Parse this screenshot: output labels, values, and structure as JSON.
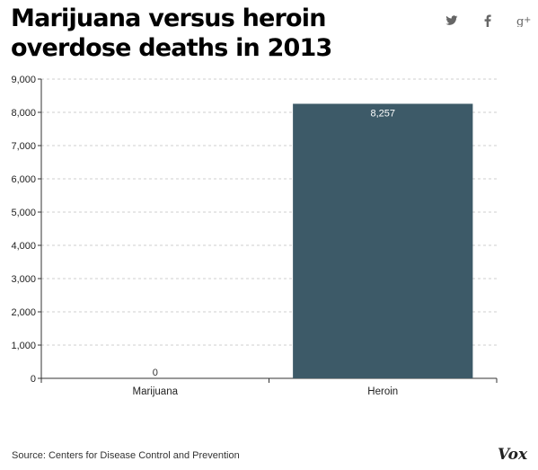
{
  "header": {
    "title": "Marijuana versus heroin overdose deaths in 2013",
    "share_icons": [
      "twitter-icon",
      "facebook-icon",
      "google-plus-icon"
    ]
  },
  "chart_data": {
    "type": "bar",
    "title": "Marijuana versus heroin overdose deaths in 2013",
    "categories": [
      "Marijuana",
      "Heroin"
    ],
    "values": [
      0,
      8257
    ],
    "data_labels": [
      "0",
      "8,257"
    ],
    "ylim": [
      0,
      9000
    ],
    "yticks": [
      0,
      1000,
      2000,
      3000,
      4000,
      5000,
      6000,
      7000,
      8000,
      9000
    ],
    "ytick_labels": [
      "0",
      "1,000",
      "2,000",
      "3,000",
      "4,000",
      "5,000",
      "6,000",
      "7,000",
      "8,000",
      "9,000"
    ],
    "xlabel": "",
    "ylabel": "",
    "grid": true,
    "bar_color": "#3d5a68"
  },
  "footer": {
    "source": "Source: Centers for Disease Control and Prevention",
    "logo": "Vox"
  }
}
